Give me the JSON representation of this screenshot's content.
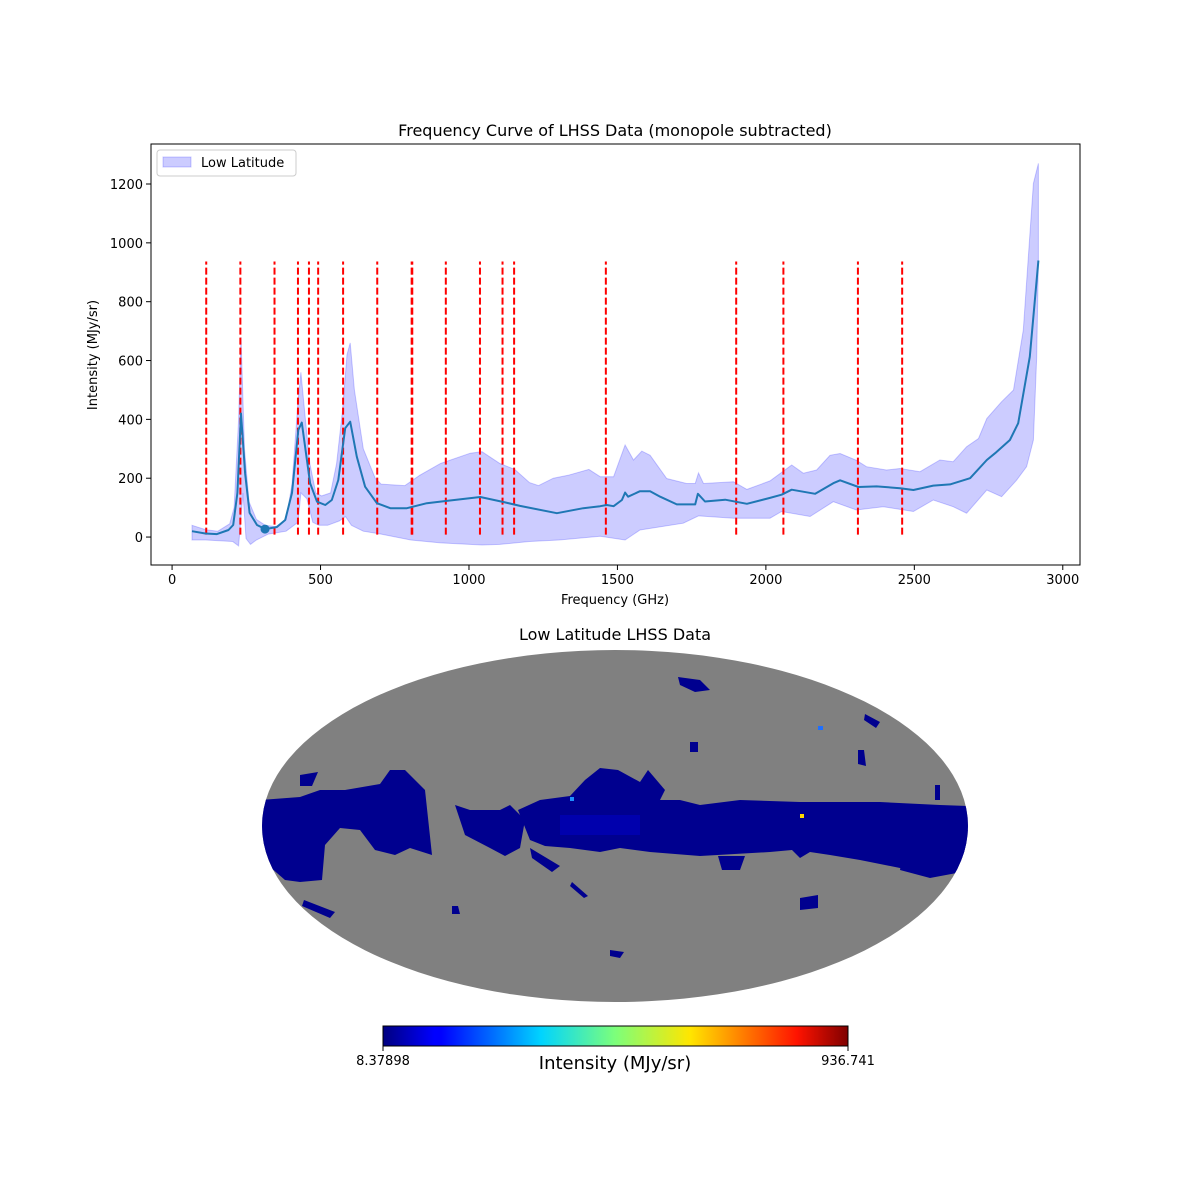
{
  "chart_data": [
    {
      "type": "line",
      "title": "Frequency Curve of LHSS Data (monopole subtracted)",
      "xlabel": "Frequency (GHz)",
      "ylabel": "Intensity (MJy/sr)",
      "xlim": [
        -71,
        3058
      ],
      "ylim": [
        -95,
        1336
      ],
      "xticks": [
        0,
        500,
        1000,
        1500,
        2000,
        2500,
        3000
      ],
      "yticks": [
        0,
        200,
        400,
        600,
        800,
        1000,
        1200
      ],
      "grid": false,
      "legend": {
        "placement": "top-left",
        "entries": [
          "Low Latitude"
        ]
      },
      "colors": {
        "mean": "#1f77b4",
        "band": "#0000ff",
        "lines": "#ff0000"
      },
      "mean": {
        "x": [
          67,
          112,
          151,
          190,
          206,
          220,
          232,
          246,
          261,
          286,
          314,
          353,
          381,
          404,
          425,
          437,
          448,
          465,
          488,
          516,
          538,
          560,
          583,
          600,
          622,
          650,
          690,
          735,
          791,
          858,
          925,
          1038,
          1116,
          1172,
          1296,
          1385,
          1442,
          1464,
          1487,
          1515,
          1526,
          1536,
          1576,
          1610,
          1644,
          1700,
          1762,
          1771,
          1795,
          1863,
          1936,
          2014,
          2053,
          2087,
          2166,
          2227,
          2250,
          2312,
          2373,
          2452,
          2497,
          2564,
          2620,
          2688,
          2744,
          2772,
          2822,
          2850,
          2889,
          2918
        ],
        "y": [
          20,
          12,
          10,
          24,
          41,
          150,
          420,
          217,
          82,
          41,
          27,
          34,
          58,
          150,
          364,
          389,
          307,
          183,
          120,
          109,
          126,
          194,
          370,
          392,
          273,
          171,
          115,
          98,
          98,
          115,
          123,
          136,
          119,
          106,
          81,
          98,
          105,
          109,
          105,
          126,
          151,
          137,
          156,
          156,
          137,
          111,
          111,
          147,
          121,
          127,
          113,
          133,
          144,
          161,
          147,
          183,
          193,
          170,
          172,
          166,
          160,
          175,
          179,
          200,
          262,
          285,
          330,
          387,
          613,
          940
        ]
      },
      "band": {
        "name": "Low Latitude",
        "upper_x": [
          67,
          114,
          154,
          194,
          209,
          224,
          232,
          244,
          259,
          284,
          314,
          349,
          384,
          404,
          424,
          434,
          449,
          464,
          484,
          504,
          534,
          554,
          574,
          589,
          600,
          614,
          644,
          684,
          704,
          784,
          834,
          904,
          1004,
          1044,
          1104,
          1154,
          1204,
          1234,
          1284,
          1334,
          1404,
          1442,
          1487,
          1526,
          1554,
          1582,
          1610,
          1666,
          1733,
          1762,
          1773,
          1790,
          1891,
          1936,
          2014,
          2087,
          2126,
          2171,
          2216,
          2250,
          2305,
          2339,
          2406,
          2452,
          2519,
          2586,
          2631,
          2676,
          2716,
          2744,
          2794,
          2834,
          2867,
          2901,
          2918
        ],
        "upper_y": [
          40,
          25,
          20,
          45,
          100,
          400,
          680,
          300,
          120,
          60,
          40,
          35,
          60,
          180,
          460,
          560,
          400,
          250,
          150,
          140,
          150,
          250,
          430,
          620,
          660,
          500,
          300,
          200,
          180,
          175,
          210,
          250,
          285,
          290,
          250,
          230,
          185,
          175,
          200,
          210,
          230,
          205,
          205,
          313,
          262,
          292,
          278,
          199,
          182,
          182,
          218,
          182,
          188,
          162,
          191,
          245,
          217,
          228,
          278,
          284,
          261,
          239,
          228,
          233,
          222,
          262,
          256,
          307,
          335,
          403,
          460,
          500,
          704,
          1202,
          1270
        ],
        "lower_x": [
          67,
          114,
          204,
          224,
          239,
          249,
          264,
          284,
          324,
          384,
          424,
          434,
          454,
          474,
          494,
          524,
          564,
          584,
          604,
          644,
          704,
          804,
          904,
          1044,
          1104,
          1204,
          1304,
          1442,
          1526,
          1576,
          1722,
          1773,
          1891,
          2014,
          2053,
          2149,
          2227,
          2305,
          2395,
          2497,
          2564,
          2631,
          2676,
          2744,
          2794,
          2844,
          2878,
          2901,
          2912,
          2918
        ],
        "lower_y": [
          -10,
          -10,
          -15,
          -30,
          150,
          -5,
          -25,
          -10,
          10,
          20,
          50,
          150,
          130,
          50,
          40,
          40,
          55,
          70,
          40,
          20,
          10,
          -10,
          -20,
          -27,
          -25,
          -15,
          -10,
          3,
          -10,
          24,
          47,
          72,
          64,
          64,
          87,
          70,
          120,
          92,
          103,
          87,
          126,
          103,
          81,
          160,
          137,
          193,
          239,
          330,
          613,
          940
        ]
      },
      "reference_lines": {
        "x": [
          115,
          230,
          345,
          424,
          461,
          492,
          576,
          691,
          807,
          809,
          922,
          1037,
          1113,
          1152,
          1461,
          1900,
          2059,
          2310,
          2459
        ],
        "ymin": 8.37898,
        "ymax": 936.741,
        "style": "dashed"
      },
      "marker_point": {
        "x": 313,
        "y": 27
      }
    },
    {
      "type": "heatmap",
      "projection": "mollweide",
      "title": "Low Latitude LHSS Data",
      "colormap": "jet",
      "colorbar": {
        "min_label": "8.37898",
        "max_label": "936.741",
        "label": "Intensity (MJy/sr)",
        "min": 8.37898,
        "max": 936.741
      },
      "colors": {
        "masked": "#808080",
        "low": "#00008f",
        "mid": "#0000cc"
      }
    }
  ]
}
